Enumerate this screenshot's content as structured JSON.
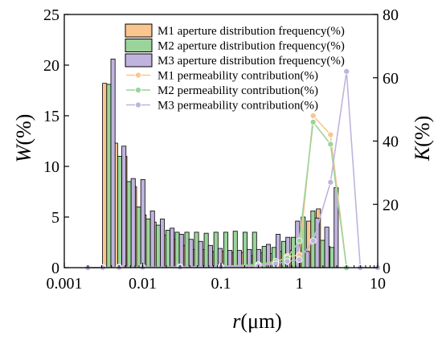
{
  "chart_data": {
    "type": "bar",
    "x_scale": "log",
    "xlim": [
      0.001,
      10
    ],
    "x_ticks": [
      0.001,
      0.01,
      0.1,
      1,
      10
    ],
    "x_tick_labels": [
      "0.001",
      "0.01",
      "0.1",
      "1",
      "10"
    ],
    "xlabel_main": "r",
    "xlabel_unit": "(μm)",
    "ylabel_left_main": "W",
    "ylabel_left_unit": "(%)",
    "ylabel_right_main": "K",
    "ylabel_right_unit": "(%)",
    "ylim_left": [
      0,
      25
    ],
    "y_ticks_left": [
      "0",
      "5",
      "10",
      "15",
      "20",
      "25"
    ],
    "ylim_right": [
      0,
      80
    ],
    "y_ticks_right": [
      "0",
      "20",
      "40",
      "60",
      "80"
    ],
    "legend_position": "top-center",
    "bar_bins": [
      0.0037,
      0.0051,
      0.0067,
      0.0089,
      0.0118,
      0.0158,
      0.021,
      0.0276,
      0.0367,
      0.0487,
      0.0648,
      0.0862,
      0.115,
      0.152,
      0.203,
      0.268,
      0.356,
      0.474,
      0.632,
      0.84,
      1.12,
      1.49,
      1.98,
      2.61
    ],
    "bar_series": [
      {
        "name": "M1 aperture distribution frequency(%)",
        "color": "#F9C68E",
        "values": [
          18.2,
          12.3,
          11.0,
          8.0,
          5.2,
          4.5,
          3.2,
          2.8,
          2.2,
          1.8,
          1.8,
          1.6,
          1.6,
          1.5,
          1.5,
          1.2,
          1.5,
          1.4,
          1.6,
          1.7,
          3.0,
          4.6,
          5.8,
          2.1
        ]
      },
      {
        "name": "M2 aperture distribution frequency(%)",
        "color": "#9BD49A",
        "values": [
          18.1,
          11.0,
          8.5,
          6.0,
          4.8,
          4.2,
          3.7,
          3.5,
          3.5,
          3.5,
          3.4,
          3.5,
          3.5,
          3.6,
          3.5,
          3.5,
          2.1,
          2.0,
          2.6,
          3.0,
          5.0,
          5.6,
          2.7,
          2.0
        ]
      },
      {
        "name": "M3 aperture distribution frequency(%)",
        "color": "#C0B3DD",
        "values": [
          20.6,
          12.0,
          8.8,
          8.7,
          5.6,
          4.8,
          3.9,
          3.3,
          2.8,
          2.6,
          2.2,
          1.9,
          1.7,
          1.7,
          1.8,
          1.8,
          2.3,
          3.3,
          3.0,
          4.6,
          1.6,
          4.9,
          4.0,
          7.9
        ]
      }
    ],
    "line_series": [
      {
        "name": "M1 permeability contribution(%)",
        "color": "#F9C68E",
        "x": [
          0.002,
          0.0031,
          0.005,
          0.01,
          0.03,
          0.1,
          0.3,
          0.5,
          0.7,
          1.0,
          1.5,
          2.5,
          4.0
        ],
        "y": [
          0,
          0.05,
          0.1,
          0.15,
          0.2,
          0.3,
          0.5,
          1.5,
          3.5,
          4.0,
          48.0,
          42.0,
          0
        ]
      },
      {
        "name": "M2 permeability contribution(%)",
        "color": "#9BD49A",
        "x": [
          0.002,
          0.0031,
          0.005,
          0.01,
          0.03,
          0.1,
          0.3,
          0.5,
          0.7,
          1.0,
          1.5,
          2.5,
          4.0
        ],
        "y": [
          0,
          0.05,
          0.1,
          0.15,
          0.25,
          0.4,
          1.0,
          2.0,
          3.0,
          8.5,
          46.0,
          39.0,
          0
        ]
      },
      {
        "name": "M3 permeability contribution(%)",
        "color": "#C0B3DD",
        "x": [
          0.002,
          0.0031,
          0.005,
          0.01,
          0.03,
          0.1,
          0.3,
          0.5,
          0.7,
          1.0,
          1.5,
          2.5,
          4.0,
          6.0,
          10.0
        ],
        "y": [
          0,
          0.05,
          0.1,
          0.15,
          0.2,
          0.3,
          0.6,
          1.2,
          2.0,
          2.5,
          8.5,
          27.0,
          62.0,
          0,
          0
        ]
      }
    ]
  }
}
